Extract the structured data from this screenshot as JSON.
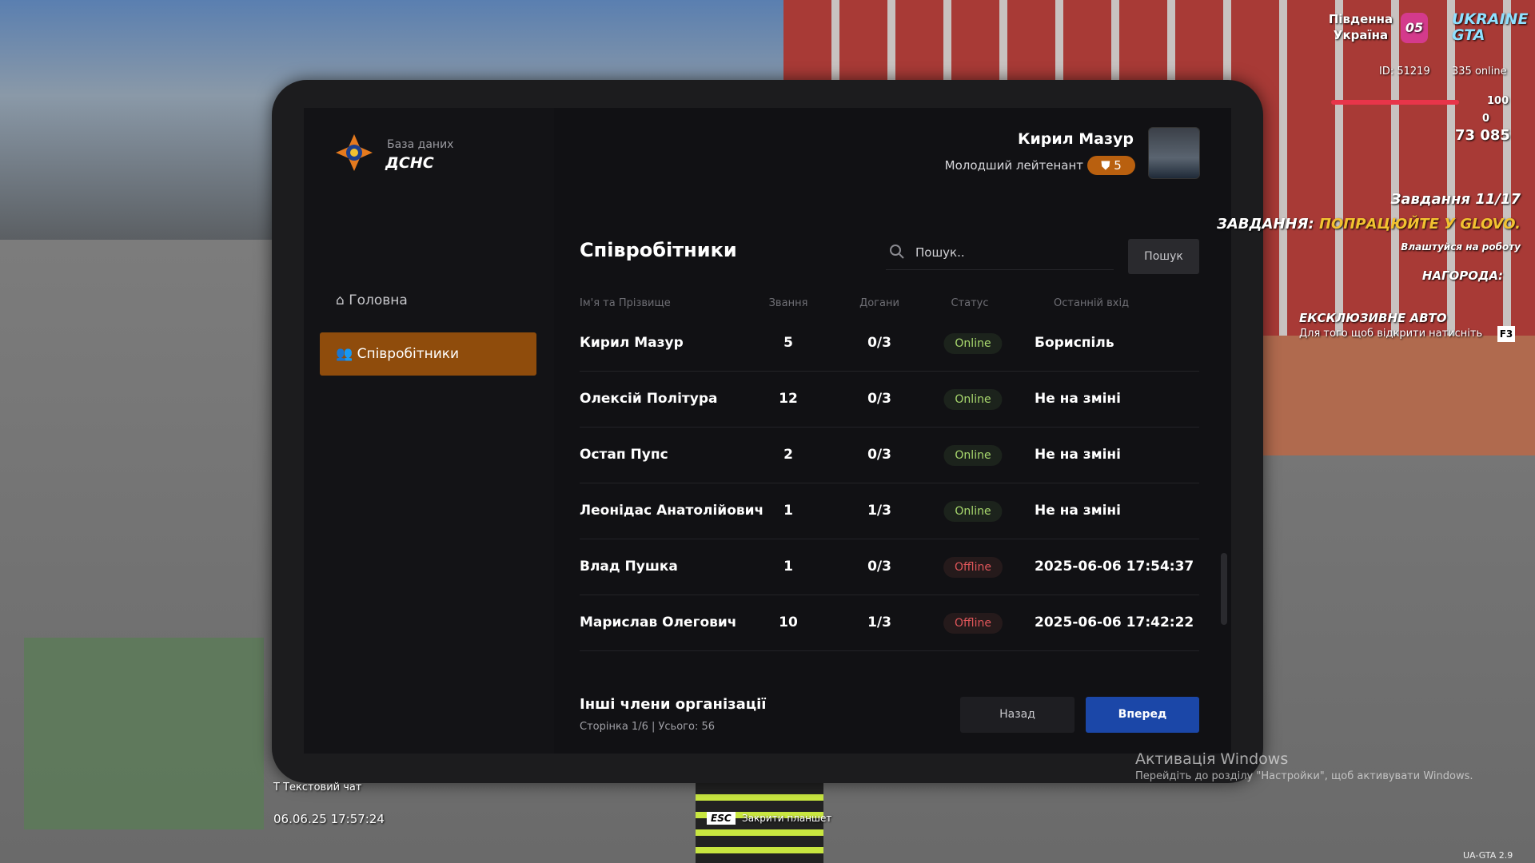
{
  "hud": {
    "region": "Південна Україна",
    "region_badge": "05",
    "server_logo": "UKRAINE GTA",
    "player_id": "ID: 51219",
    "online": "335 online",
    "health": "100",
    "armor": "0",
    "money": "73 085",
    "quest_count": "Завдання 11/17",
    "quest_label": "ЗАВДАННЯ:",
    "quest_text": "ПОПРАЦЮЙТЕ У GLOVO.",
    "quest_hint": "Влаштуйся на роботу",
    "reward": "НАГОРОДА:",
    "promo_title": "ЕКСКЛЮЗИВНЕ АВТО",
    "promo_text": "Для того щоб відкрити натисніть",
    "promo_key": "F3",
    "chat": "Текстовий чат",
    "chat_key": "T",
    "datetime": "06.06.25 17:57:24",
    "esc_key": "ESC",
    "esc_text": "Закрити планшет",
    "version": "UA-GTA 2.9"
  },
  "windows": {
    "title": "Активація Windows",
    "text": "Перейдіть до розділу \"Настройки\", щоб активувати Windows."
  },
  "header": {
    "subtitle": "База даних",
    "title": "ДСНС",
    "user_name": "Кирил Мазур",
    "user_rank": "Молодший лейтенант",
    "user_level": "5"
  },
  "nav": {
    "items": [
      "Головна",
      "Співробітники"
    ]
  },
  "page": {
    "title": "Співробітники",
    "search_placeholder": "Пошук..",
    "search_button": "Пошук"
  },
  "table": {
    "columns": [
      "Ім'я та Прізвище",
      "Звання",
      "Догани",
      "Статус",
      "Останній вхід"
    ],
    "rows": [
      [
        "Кирил Мазур",
        "5",
        "0/3",
        "Online",
        "Бориспіль"
      ],
      [
        "Олексій Політура",
        "12",
        "0/3",
        "Online",
        "Не на зміні"
      ],
      [
        "Остап Пупс",
        "2",
        "0/3",
        "Online",
        "Не на зміні"
      ],
      [
        "Леонідас Анатолійович",
        "1",
        "1/3",
        "Online",
        "Не на зміні"
      ],
      [
        "Влад Пушка",
        "1",
        "0/3",
        "Offline",
        "2025-06-06 17:54:37"
      ],
      [
        "Марислав Олегович",
        "10",
        "1/3",
        "Offline",
        "2025-06-06 17:42:22"
      ]
    ]
  },
  "footer": {
    "title": "Інші члени організації",
    "pagination": "Сторінка 1/6 | Усього: 56",
    "back": "Назад",
    "next": "Вперед"
  }
}
